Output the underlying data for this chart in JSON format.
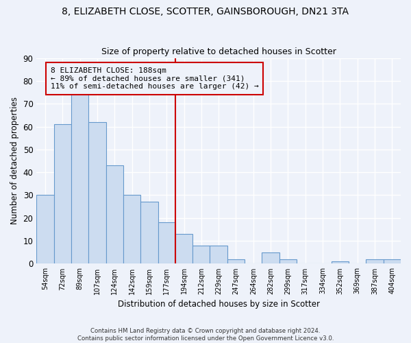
{
  "title": "8, ELIZABETH CLOSE, SCOTTER, GAINSBOROUGH, DN21 3TA",
  "subtitle": "Size of property relative to detached houses in Scotter",
  "xlabel": "Distribution of detached houses by size in Scotter",
  "ylabel": "Number of detached properties",
  "bar_color": "#ccdcf0",
  "bar_edge_color": "#6699cc",
  "categories": [
    "54sqm",
    "72sqm",
    "89sqm",
    "107sqm",
    "124sqm",
    "142sqm",
    "159sqm",
    "177sqm",
    "194sqm",
    "212sqm",
    "229sqm",
    "247sqm",
    "264sqm",
    "282sqm",
    "299sqm",
    "317sqm",
    "334sqm",
    "352sqm",
    "369sqm",
    "387sqm",
    "404sqm"
  ],
  "values": [
    30,
    61,
    76,
    62,
    43,
    30,
    27,
    18,
    13,
    8,
    8,
    2,
    0,
    5,
    2,
    0,
    0,
    1,
    0,
    2,
    2
  ],
  "ylim": [
    0,
    90
  ],
  "yticks": [
    0,
    10,
    20,
    30,
    40,
    50,
    60,
    70,
    80,
    90
  ],
  "annotation_title": "8 ELIZABETH CLOSE: 188sqm",
  "annotation_line1": "← 89% of detached houses are smaller (341)",
  "annotation_line2": "11% of semi-detached houses are larger (42) →",
  "vline_position": 7.5,
  "footer_line1": "Contains HM Land Registry data © Crown copyright and database right 2024.",
  "footer_line2": "Contains public sector information licensed under the Open Government Licence v3.0.",
  "background_color": "#eef2fa",
  "grid_color": "#ffffff",
  "vline_color": "#cc0000",
  "annotation_box_edge_color": "#cc0000",
  "title_fontsize": 10,
  "subtitle_fontsize": 9,
  "bar_width": 1.0
}
